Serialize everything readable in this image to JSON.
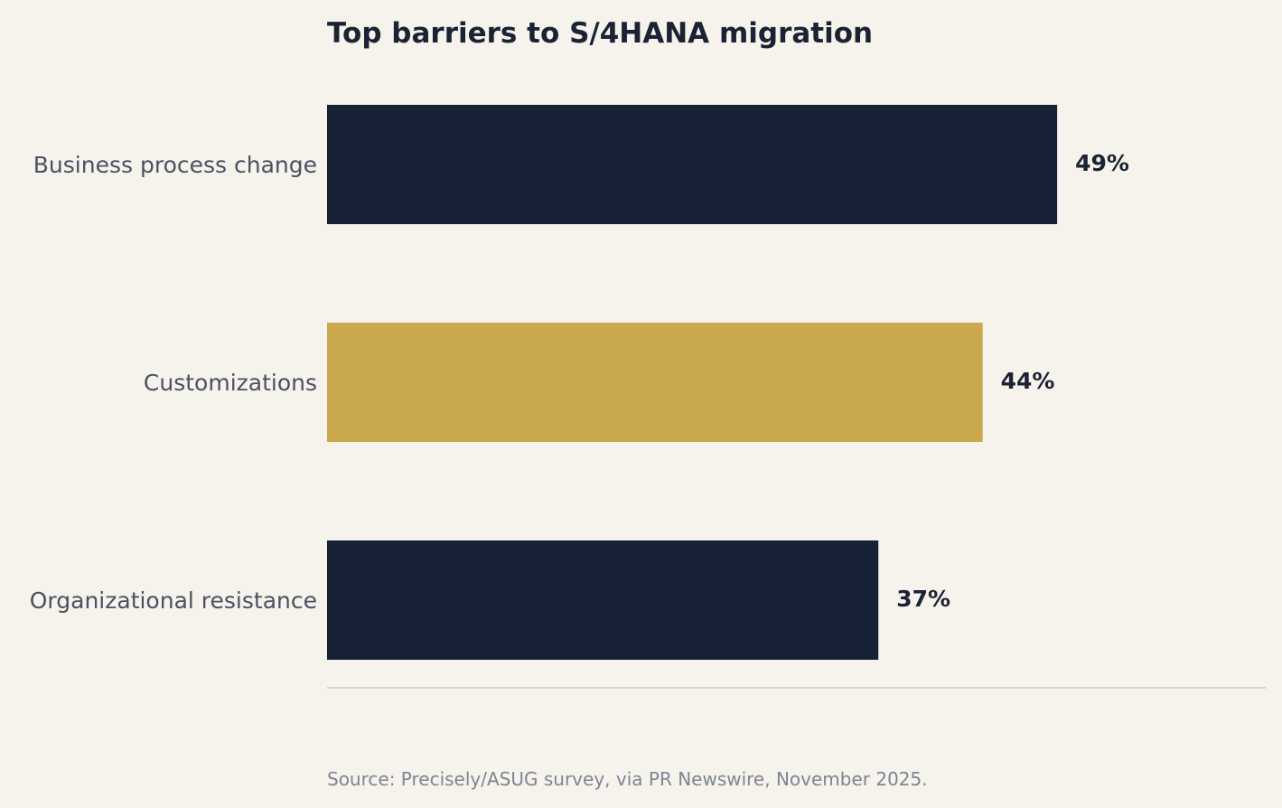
{
  "chart_data": {
    "type": "bar",
    "orientation": "horizontal",
    "title": "Top barriers to S/4HANA migration",
    "categories": [
      "Business process change",
      "Customizations",
      "Organizational resistance"
    ],
    "values": [
      49,
      44,
      37
    ],
    "value_labels": [
      "49%",
      "44%",
      "37%"
    ],
    "unit": "%",
    "xlim": [
      0,
      63
    ],
    "grid": false,
    "legend": "none",
    "source": "Source: Precisely/ASUG survey, via PR Newswire, November 2025.",
    "colors": {
      "default_bar": "#172135",
      "highlight_bar": "#c9a84e",
      "background": "#f6f2ec",
      "baseline": "#d9d5cf"
    },
    "highlight_index": 1
  }
}
